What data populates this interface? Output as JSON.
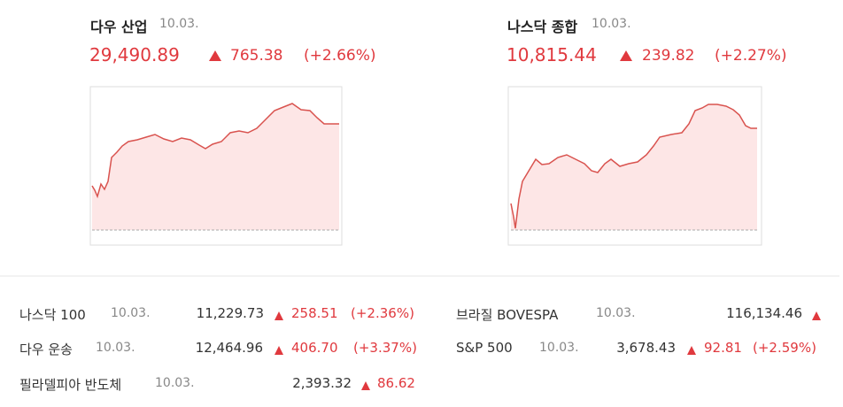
{
  "top": [
    {
      "name": "다우 산업",
      "date": "10.03.",
      "value": "29,490.89",
      "change": "765.38",
      "pct": "(+2.66%)"
    },
    {
      "name": "나스닥 종합",
      "date": "10.03.",
      "value": "10,815.44",
      "change": "239.82",
      "pct": "(+2.27%)"
    }
  ],
  "list": [
    {
      "name": "나스닥 100",
      "date": "10.03.",
      "value": "11,229.73",
      "change": "258.51",
      "pct": "(+2.36%)"
    },
    {
      "name": "다우 운송",
      "date": "10.03.",
      "value": "12,464.96",
      "change": "406.70",
      "pct": "(+3.37%)"
    },
    {
      "name": "필라델피아 반도체",
      "date": "10.03.",
      "value": "2,393.32",
      "change": "86.62"
    },
    {
      "name": "브라질 BOVESPA",
      "date": "10.03.",
      "value": "116,134.46"
    },
    {
      "name": "S&P 500",
      "date": "10.03.",
      "value": "3,678.43",
      "change": "92.81",
      "pct": "(+2.59%)"
    }
  ]
}
